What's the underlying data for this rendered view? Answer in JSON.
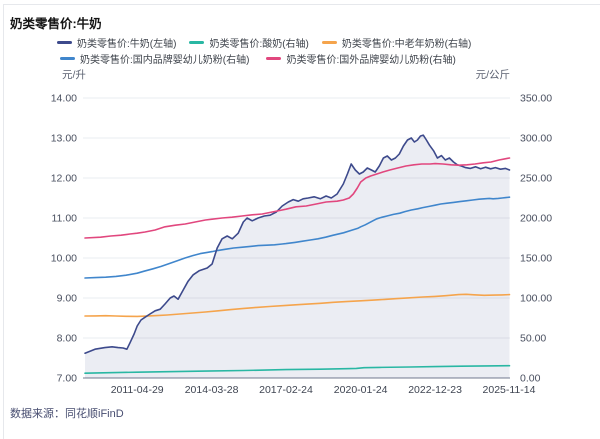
{
  "title": "奶类零售价:牛奶",
  "source": {
    "label": "数据来源：",
    "value": "同花顺iFinD"
  },
  "axes": {
    "left_unit": "元/升",
    "right_unit": "元/公斤"
  },
  "legend": {
    "rows": [
      [
        0,
        1,
        2
      ],
      [
        3,
        4
      ]
    ]
  },
  "chart_data": {
    "type": "line",
    "title": "奶类零售价:牛奶",
    "grid": true,
    "legend_position": "top",
    "x_axis": {
      "min_year": 2009.29,
      "max_year": 2025.89,
      "ticks": [
        {
          "label": "2011-04-29",
          "year": 2011.33
        },
        {
          "label": "2014-03-28",
          "year": 2014.24
        },
        {
          "label": "2017-02-24",
          "year": 2017.15
        },
        {
          "label": "2020-01-24",
          "year": 2020.07
        },
        {
          "label": "2022-12-23",
          "year": 2022.98
        },
        {
          "label": "2025-11-14",
          "year": 2025.87
        }
      ]
    },
    "left_axis": {
      "label": "元/升",
      "min": 7,
      "max": 14,
      "tick_step": 1,
      "decimals": 2
    },
    "right_axis": {
      "label": "元/公斤",
      "min": 0,
      "max": 350,
      "tick_step": 50,
      "decimals": 2
    },
    "series": [
      {
        "name": "奶类零售价:牛奶(左轴)",
        "axis": "left",
        "color": "#3d4a8c",
        "area": true,
        "area_opacity": 0.1,
        "points": [
          [
            2009.29,
            7.62
          ],
          [
            2009.68,
            7.72
          ],
          [
            2010.07,
            7.76
          ],
          [
            2010.35,
            7.78
          ],
          [
            2010.58,
            7.76
          ],
          [
            2010.78,
            7.75
          ],
          [
            2010.93,
            7.72
          ],
          [
            2011.05,
            7.88
          ],
          [
            2011.21,
            8.1
          ],
          [
            2011.33,
            8.3
          ],
          [
            2011.48,
            8.45
          ],
          [
            2011.64,
            8.52
          ],
          [
            2011.83,
            8.6
          ],
          [
            2012.03,
            8.68
          ],
          [
            2012.23,
            8.72
          ],
          [
            2012.42,
            8.85
          ],
          [
            2012.62,
            9.0
          ],
          [
            2012.77,
            9.05
          ],
          [
            2012.93,
            8.97
          ],
          [
            2013.13,
            9.2
          ],
          [
            2013.32,
            9.42
          ],
          [
            2013.52,
            9.58
          ],
          [
            2013.75,
            9.68
          ],
          [
            2014.07,
            9.75
          ],
          [
            2014.26,
            9.85
          ],
          [
            2014.46,
            10.25
          ],
          [
            2014.65,
            10.48
          ],
          [
            2014.85,
            10.55
          ],
          [
            2015.05,
            10.48
          ],
          [
            2015.28,
            10.62
          ],
          [
            2015.48,
            10.9
          ],
          [
            2015.63,
            11.0
          ],
          [
            2015.83,
            10.93
          ],
          [
            2016.06,
            11.0
          ],
          [
            2016.3,
            11.05
          ],
          [
            2016.53,
            11.07
          ],
          [
            2016.77,
            11.15
          ],
          [
            2017.0,
            11.3
          ],
          [
            2017.24,
            11.4
          ],
          [
            2017.43,
            11.46
          ],
          [
            2017.63,
            11.42
          ],
          [
            2017.82,
            11.48
          ],
          [
            2018.02,
            11.5
          ],
          [
            2018.25,
            11.53
          ],
          [
            2018.49,
            11.48
          ],
          [
            2018.72,
            11.55
          ],
          [
            2018.92,
            11.5
          ],
          [
            2019.15,
            11.6
          ],
          [
            2019.39,
            11.85
          ],
          [
            2019.55,
            12.1
          ],
          [
            2019.7,
            12.35
          ],
          [
            2019.86,
            12.2
          ],
          [
            2020.02,
            12.1
          ],
          [
            2020.17,
            12.15
          ],
          [
            2020.33,
            12.25
          ],
          [
            2020.49,
            12.2
          ],
          [
            2020.64,
            12.15
          ],
          [
            2020.8,
            12.3
          ],
          [
            2020.96,
            12.5
          ],
          [
            2021.11,
            12.55
          ],
          [
            2021.27,
            12.45
          ],
          [
            2021.43,
            12.5
          ],
          [
            2021.58,
            12.6
          ],
          [
            2021.74,
            12.8
          ],
          [
            2021.9,
            12.95
          ],
          [
            2022.05,
            13.0
          ],
          [
            2022.17,
            12.9
          ],
          [
            2022.29,
            12.95
          ],
          [
            2022.41,
            13.05
          ],
          [
            2022.52,
            13.07
          ],
          [
            2022.64,
            12.95
          ],
          [
            2022.76,
            12.82
          ],
          [
            2022.92,
            12.68
          ],
          [
            2023.07,
            12.5
          ],
          [
            2023.23,
            12.56
          ],
          [
            2023.38,
            12.45
          ],
          [
            2023.54,
            12.5
          ],
          [
            2023.7,
            12.4
          ],
          [
            2023.85,
            12.33
          ],
          [
            2024.01,
            12.3
          ],
          [
            2024.17,
            12.26
          ],
          [
            2024.36,
            12.24
          ],
          [
            2024.56,
            12.28
          ],
          [
            2024.76,
            12.23
          ],
          [
            2024.95,
            12.27
          ],
          [
            2025.15,
            12.23
          ],
          [
            2025.34,
            12.26
          ],
          [
            2025.54,
            12.22
          ],
          [
            2025.73,
            12.24
          ],
          [
            2025.89,
            12.2
          ]
        ]
      },
      {
        "name": "奶类零售价:酸奶(右轴)",
        "axis": "right",
        "color": "#29b7a3",
        "points": [
          [
            2009.29,
            6.0
          ],
          [
            2010.0,
            6.5
          ],
          [
            2011.33,
            7.2
          ],
          [
            2012.5,
            7.9
          ],
          [
            2014.0,
            8.6
          ],
          [
            2015.5,
            9.4
          ],
          [
            2017.15,
            10.5
          ],
          [
            2018.5,
            11.0
          ],
          [
            2019.5,
            11.6
          ],
          [
            2019.9,
            12.0
          ],
          [
            2020.2,
            12.9
          ],
          [
            2020.8,
            13.2
          ],
          [
            2022.0,
            13.8
          ],
          [
            2023.0,
            14.2
          ],
          [
            2024.0,
            14.7
          ],
          [
            2025.0,
            15.1
          ],
          [
            2025.89,
            15.4
          ]
        ]
      },
      {
        "name": "奶类零售价:中老年奶粉(右轴)",
        "axis": "right",
        "color": "#f5a44c",
        "points": [
          [
            2009.29,
            77.5
          ],
          [
            2009.7,
            77.6
          ],
          [
            2010.1,
            77.9
          ],
          [
            2010.5,
            77.5
          ],
          [
            2010.9,
            77.1
          ],
          [
            2011.33,
            77.0
          ],
          [
            2011.7,
            77.4
          ],
          [
            2012.1,
            78.0
          ],
          [
            2012.5,
            78.8
          ],
          [
            2013.0,
            80.0
          ],
          [
            2013.5,
            81.3
          ],
          [
            2014.0,
            82.5
          ],
          [
            2014.5,
            84.0
          ],
          [
            2015.0,
            85.5
          ],
          [
            2015.5,
            87.0
          ],
          [
            2016.0,
            88.3
          ],
          [
            2016.5,
            89.4
          ],
          [
            2017.15,
            90.8
          ],
          [
            2017.6,
            91.6
          ],
          [
            2018.0,
            92.4
          ],
          [
            2018.5,
            93.4
          ],
          [
            2019.0,
            94.6
          ],
          [
            2019.5,
            95.5
          ],
          [
            2020.07,
            96.5
          ],
          [
            2020.5,
            97.2
          ],
          [
            2021.0,
            98.2
          ],
          [
            2021.5,
            99.3
          ],
          [
            2022.0,
            100.3
          ],
          [
            2022.5,
            101.2
          ],
          [
            2022.98,
            102.0
          ],
          [
            2023.4,
            102.9
          ],
          [
            2023.9,
            104.3
          ],
          [
            2024.2,
            104.6
          ],
          [
            2024.5,
            104.0
          ],
          [
            2024.9,
            103.4
          ],
          [
            2025.3,
            103.6
          ],
          [
            2025.6,
            103.9
          ],
          [
            2025.89,
            104.2
          ]
        ]
      },
      {
        "name": "奶类零售价:国内品牌婴幼儿奶粉(右轴)",
        "axis": "right",
        "color": "#4086cc",
        "points": [
          [
            2009.29,
            125.0
          ],
          [
            2009.7,
            125.5
          ],
          [
            2010.1,
            126.0
          ],
          [
            2010.5,
            127.0
          ],
          [
            2010.9,
            128.5
          ],
          [
            2011.33,
            131.0
          ],
          [
            2011.6,
            133.5
          ],
          [
            2011.95,
            136.5
          ],
          [
            2012.27,
            139.5
          ],
          [
            2012.58,
            143.0
          ],
          [
            2012.9,
            146.5
          ],
          [
            2013.2,
            150.0
          ],
          [
            2013.5,
            153.0
          ],
          [
            2013.8,
            155.5
          ],
          [
            2014.07,
            157.0
          ],
          [
            2014.26,
            158.0
          ],
          [
            2014.5,
            159.5
          ],
          [
            2014.8,
            161.0
          ],
          [
            2015.1,
            162.5
          ],
          [
            2015.45,
            163.5
          ],
          [
            2015.75,
            164.5
          ],
          [
            2016.06,
            165.5
          ],
          [
            2016.4,
            166.0
          ],
          [
            2016.7,
            166.5
          ],
          [
            2017.0,
            167.5
          ],
          [
            2017.15,
            168.0
          ],
          [
            2017.5,
            169.5
          ],
          [
            2017.8,
            171.0
          ],
          [
            2018.1,
            172.5
          ],
          [
            2018.4,
            174.0
          ],
          [
            2018.7,
            176.0
          ],
          [
            2019.0,
            178.5
          ],
          [
            2019.4,
            181.5
          ],
          [
            2019.7,
            184.5
          ],
          [
            2019.95,
            187.0
          ],
          [
            2020.07,
            189.0
          ],
          [
            2020.25,
            191.5
          ],
          [
            2020.4,
            194.0
          ],
          [
            2020.55,
            196.5
          ],
          [
            2020.7,
            199.0
          ],
          [
            2020.85,
            200.5
          ],
          [
            2021.1,
            202.5
          ],
          [
            2021.35,
            204.5
          ],
          [
            2021.6,
            206.0
          ],
          [
            2021.8,
            208.0
          ],
          [
            2022.05,
            210.0
          ],
          [
            2022.3,
            211.5
          ],
          [
            2022.5,
            213.0
          ],
          [
            2022.75,
            214.5
          ],
          [
            2022.98,
            216.0
          ],
          [
            2023.2,
            217.5
          ],
          [
            2023.45,
            218.5
          ],
          [
            2023.7,
            219.5
          ],
          [
            2023.95,
            220.5
          ],
          [
            2024.2,
            221.5
          ],
          [
            2024.45,
            222.5
          ],
          [
            2024.7,
            223.5
          ],
          [
            2024.9,
            224.0
          ],
          [
            2025.1,
            224.5
          ],
          [
            2025.25,
            224.0
          ],
          [
            2025.45,
            224.5
          ],
          [
            2025.6,
            225.0
          ],
          [
            2025.75,
            225.5
          ],
          [
            2025.89,
            226.0
          ]
        ]
      },
      {
        "name": "奶类零售价:国外品牌婴幼儿奶粉(右轴)",
        "axis": "right",
        "color": "#e1477e",
        "points": [
          [
            2009.29,
            175.0
          ],
          [
            2009.9,
            176.0
          ],
          [
            2010.3,
            177.5
          ],
          [
            2010.7,
            178.5
          ],
          [
            2011.05,
            180.0
          ],
          [
            2011.33,
            181.0
          ],
          [
            2011.64,
            182.5
          ],
          [
            2012.03,
            185.0
          ],
          [
            2012.42,
            189.0
          ],
          [
            2012.82,
            191.0
          ],
          [
            2013.21,
            192.5
          ],
          [
            2013.6,
            195.0
          ],
          [
            2014.0,
            197.5
          ],
          [
            2014.26,
            198.5
          ],
          [
            2014.65,
            200.0
          ],
          [
            2015.04,
            201.0
          ],
          [
            2015.43,
            202.5
          ],
          [
            2015.83,
            204.0
          ],
          [
            2016.22,
            205.0
          ],
          [
            2016.61,
            207.5
          ],
          [
            2017.0,
            210.0
          ],
          [
            2017.15,
            211.0
          ],
          [
            2017.54,
            214.0
          ],
          [
            2017.94,
            215.0
          ],
          [
            2018.33,
            217.5
          ],
          [
            2018.72,
            220.0
          ],
          [
            2019.15,
            221.0
          ],
          [
            2019.39,
            222.5
          ],
          [
            2019.62,
            225.0
          ],
          [
            2019.78,
            230.0
          ],
          [
            2019.94,
            237.5
          ],
          [
            2020.07,
            245.0
          ],
          [
            2020.27,
            250.0
          ],
          [
            2020.46,
            252.5
          ],
          [
            2020.7,
            255.0
          ],
          [
            2020.94,
            257.5
          ],
          [
            2021.21,
            260.0
          ],
          [
            2021.52,
            262.5
          ],
          [
            2021.84,
            265.0
          ],
          [
            2022.15,
            266.5
          ],
          [
            2022.46,
            267.5
          ],
          [
            2022.78,
            267.5
          ],
          [
            2022.98,
            268.0
          ],
          [
            2023.29,
            267.5
          ],
          [
            2023.6,
            266.5
          ],
          [
            2023.92,
            266.0
          ],
          [
            2024.23,
            266.5
          ],
          [
            2024.54,
            267.5
          ],
          [
            2024.86,
            269.0
          ],
          [
            2025.17,
            270.0
          ],
          [
            2025.48,
            272.5
          ],
          [
            2025.72,
            274.0
          ],
          [
            2025.89,
            275.0
          ]
        ]
      }
    ]
  }
}
